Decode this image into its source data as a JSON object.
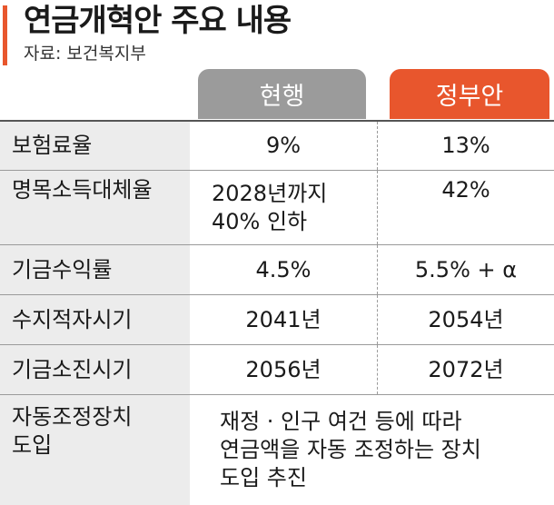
{
  "header": {
    "title": "연금개혁안 주요 내용",
    "source": "자료: 보건복지부",
    "accent_color": "#e8562d"
  },
  "columns": {
    "current": "현행",
    "government": "정부안",
    "current_color": "#9b9b9b",
    "government_color": "#e8562d"
  },
  "rows": [
    {
      "label": "보험료율",
      "current": "9%",
      "government": "13%"
    },
    {
      "label": "명목소득대체율",
      "current_lines": [
        "2028년까지",
        "40% 인하"
      ],
      "government": "42%"
    },
    {
      "label": "기금수익률",
      "current": "4.5%",
      "government": "5.5% + α"
    },
    {
      "label": "수지적자시기",
      "current": "2041년",
      "government": "2054년"
    },
    {
      "label": "기금소진시기",
      "current": "2056년",
      "government": "2072년"
    },
    {
      "label_lines": [
        "자동조정장치",
        "도입"
      ],
      "merged_lines": [
        "재정 · 인구 여건 등에 따라",
        "연금액을 자동 조정하는 장치",
        "도입 추진"
      ]
    }
  ]
}
